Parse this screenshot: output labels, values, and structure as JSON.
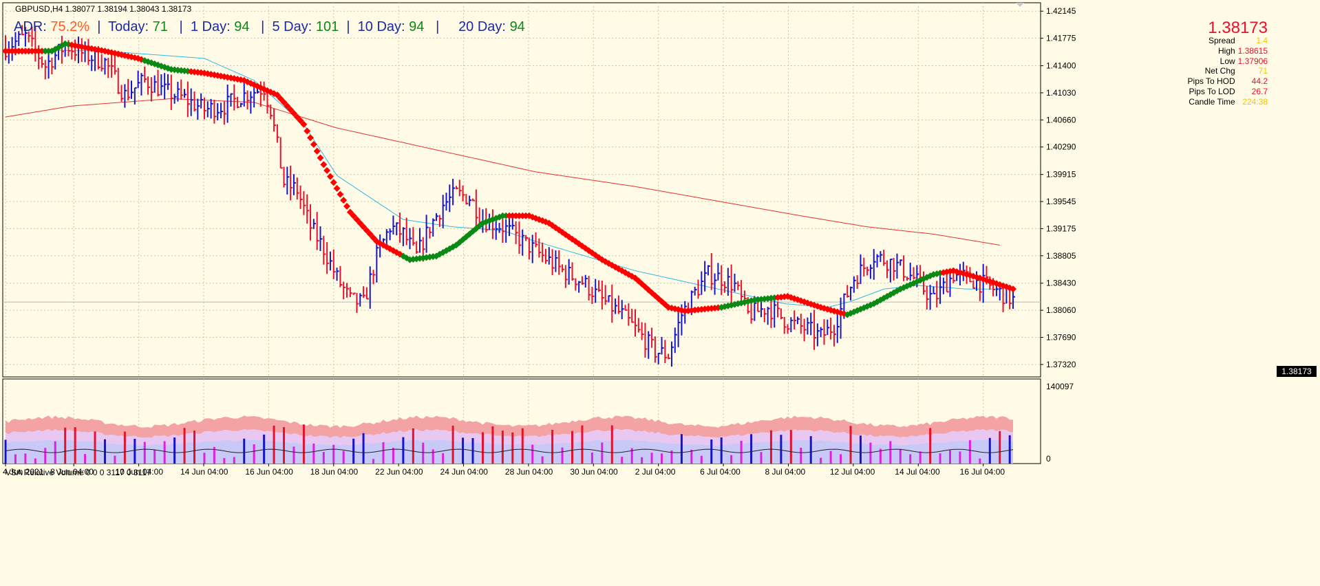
{
  "window": {
    "title": "GBPUSD,H4  1.38077 1.38194 1.38043 1.38173"
  },
  "header": {
    "adr_label": "ADR:",
    "adr_value": "75.2%",
    "today_label": "Today:",
    "today_value": "71",
    "d1_label": "1 Day:",
    "d1_value": "94",
    "d5_label": "5 Day:",
    "d5_value": "101",
    "d10_label": "10 Day:",
    "d10_value": "94",
    "d20_label": "20 Day:",
    "d20_value": "94"
  },
  "info_panel": {
    "price": "1.38173",
    "rows": [
      {
        "label": "Spread",
        "value": "1.4",
        "color": "#f5c400"
      },
      {
        "label": "High",
        "value": "1.38615",
        "color": "#e8112d"
      },
      {
        "label": "Low",
        "value": "1.37906",
        "color": "#e8112d"
      },
      {
        "label": "Net Chg",
        "value": "71",
        "color": "#f5c400"
      },
      {
        "label": "Pips To HOD",
        "value": "44.2",
        "color": "#e8112d"
      },
      {
        "label": "Pips To LOD",
        "value": "26.7",
        "color": "#e8112d"
      },
      {
        "label": "Candle Time",
        "value": "224:38",
        "color": "#f5c400"
      }
    ]
  },
  "current_price_tag": "1.38173",
  "volume_panel": {
    "title": "VSA Relative Volume 0 0 0 3117 0 3117",
    "ymax_label": "140097",
    "ymin_label": "0"
  },
  "colors": {
    "background": "#fffbe6",
    "grid": "#c8c8a0",
    "bull": "#1515d0",
    "bear": "#e8112d",
    "trend_up": "#0a8a14",
    "trend_down": "#ff0000",
    "ma_fast": "#30b8e8",
    "ma_slow": "#e83030"
  },
  "chart_data": {
    "type": "ohlc",
    "symbol": "GBPUSD",
    "timeframe": "H4",
    "y_ticks": [
      "1.42145",
      "1.41775",
      "1.41400",
      "1.41030",
      "1.40660",
      "1.40290",
      "1.39915",
      "1.39545",
      "1.39175",
      "1.38805",
      "1.38430",
      "1.38060",
      "1.37690",
      "1.37320"
    ],
    "ylim": [
      1.3715,
      1.4226
    ],
    "x_tick_labels": [
      "4 Jun 2021",
      "8 Jun 04:00",
      "10 Jun 04:00",
      "14 Jun 04:00",
      "16 Jun 04:00",
      "18 Jun 04:00",
      "22 Jun 04:00",
      "24 Jun 04:00",
      "28 Jun 04:00",
      "30 Jun 04:00",
      "2 Jul 04:00",
      "6 Jul 04:00",
      "8 Jul 04:00",
      "12 Jul 04:00",
      "14 Jul 04:00",
      "16 Jul 04:00"
    ],
    "anchors": [
      [
        0,
        1.4165
      ],
      [
        6,
        1.418
      ],
      [
        12,
        1.414
      ],
      [
        18,
        1.4168
      ],
      [
        24,
        1.4155
      ],
      [
        30,
        1.4145
      ],
      [
        36,
        1.41
      ],
      [
        42,
        1.412
      ],
      [
        48,
        1.4105
      ],
      [
        54,
        1.4095
      ],
      [
        60,
        1.408
      ],
      [
        66,
        1.4085
      ],
      [
        72,
        1.41
      ],
      [
        78,
        1.411
      ],
      [
        80,
        1.408
      ],
      [
        84,
        1.398
      ],
      [
        88,
        1.397
      ],
      [
        92,
        1.392
      ],
      [
        96,
        1.389
      ],
      [
        100,
        1.385
      ],
      [
        104,
        1.382
      ],
      [
        108,
        1.3815
      ],
      [
        112,
        1.388
      ],
      [
        116,
        1.392
      ],
      [
        120,
        1.391
      ],
      [
        124,
        1.388
      ],
      [
        128,
        1.392
      ],
      [
        132,
        1.395
      ],
      [
        136,
        1.3965
      ],
      [
        140,
        1.396
      ],
      [
        144,
        1.393
      ],
      [
        150,
        1.392
      ],
      [
        156,
        1.39
      ],
      [
        162,
        1.388
      ],
      [
        168,
        1.386
      ],
      [
        174,
        1.3845
      ],
      [
        180,
        1.382
      ],
      [
        186,
        1.38
      ],
      [
        192,
        1.377
      ],
      [
        196,
        1.375
      ],
      [
        200,
        1.3745
      ],
      [
        204,
        1.38
      ],
      [
        208,
        1.383
      ],
      [
        212,
        1.3855
      ],
      [
        216,
        1.385
      ],
      [
        220,
        1.384
      ],
      [
        224,
        1.38
      ],
      [
        230,
        1.381
      ],
      [
        236,
        1.379
      ],
      [
        242,
        1.378
      ],
      [
        246,
        1.377
      ],
      [
        250,
        1.3785
      ],
      [
        256,
        1.385
      ],
      [
        262,
        1.388
      ],
      [
        268,
        1.387
      ],
      [
        274,
        1.385
      ],
      [
        280,
        1.382
      ],
      [
        286,
        1.3855
      ],
      [
        290,
        1.385
      ],
      [
        296,
        1.384
      ],
      [
        300,
        1.383
      ],
      [
        304,
        1.382
      ]
    ],
    "trend_line": [
      [
        0,
        1.416
      ],
      [
        14,
        1.416
      ],
      [
        18,
        1.417
      ],
      [
        24,
        1.4165
      ],
      [
        30,
        1.416
      ],
      [
        40,
        1.415
      ],
      [
        50,
        1.4135
      ],
      [
        60,
        1.413
      ],
      [
        72,
        1.412
      ],
      [
        82,
        1.41
      ],
      [
        90,
        1.406
      ],
      [
        96,
        1.4005
      ],
      [
        104,
        1.394
      ],
      [
        112,
        1.39
      ],
      [
        122,
        1.3875
      ],
      [
        130,
        1.388
      ],
      [
        136,
        1.3895
      ],
      [
        144,
        1.3925
      ],
      [
        150,
        1.3935
      ],
      [
        158,
        1.3935
      ],
      [
        164,
        1.3925
      ],
      [
        172,
        1.39
      ],
      [
        180,
        1.3875
      ],
      [
        190,
        1.385
      ],
      [
        200,
        1.381
      ],
      [
        205,
        1.3805
      ],
      [
        216,
        1.381
      ],
      [
        226,
        1.382
      ],
      [
        236,
        1.3825
      ],
      [
        246,
        1.381
      ],
      [
        254,
        1.38
      ],
      [
        262,
        1.3815
      ],
      [
        270,
        1.3835
      ],
      [
        280,
        1.3855
      ],
      [
        286,
        1.386
      ],
      [
        294,
        1.385
      ],
      [
        304,
        1.3835
      ]
    ],
    "trend_up_ranges": [
      [
        12,
        19
      ],
      [
        42,
        55
      ],
      [
        120,
        151
      ],
      [
        216,
        232
      ],
      [
        254,
        282
      ]
    ],
    "ma_fast": [
      [
        0,
        1.4162
      ],
      [
        30,
        1.416
      ],
      [
        60,
        1.415
      ],
      [
        75,
        1.412
      ],
      [
        90,
        1.406
      ],
      [
        100,
        1.399
      ],
      [
        110,
        1.396
      ],
      [
        120,
        1.393
      ],
      [
        135,
        1.392
      ],
      [
        150,
        1.3915
      ],
      [
        160,
        1.39
      ],
      [
        175,
        1.388
      ],
      [
        190,
        1.386
      ],
      [
        205,
        1.3845
      ],
      [
        220,
        1.383
      ],
      [
        235,
        1.3815
      ],
      [
        248,
        1.381
      ],
      [
        255,
        1.3818
      ],
      [
        265,
        1.3835
      ],
      [
        275,
        1.384
      ],
      [
        290,
        1.3835
      ],
      [
        300,
        1.3835
      ]
    ],
    "ma_slow": [
      [
        0,
        1.407
      ],
      [
        20,
        1.4085
      ],
      [
        50,
        1.4095
      ],
      [
        75,
        1.409
      ],
      [
        100,
        1.4055
      ],
      [
        130,
        1.4025
      ],
      [
        160,
        1.3995
      ],
      [
        190,
        1.3975
      ],
      [
        215,
        1.3955
      ],
      [
        240,
        1.3935
      ],
      [
        260,
        1.392
      ],
      [
        280,
        1.391
      ],
      [
        300,
        1.3895
      ]
    ],
    "volume_max": 140097
  }
}
